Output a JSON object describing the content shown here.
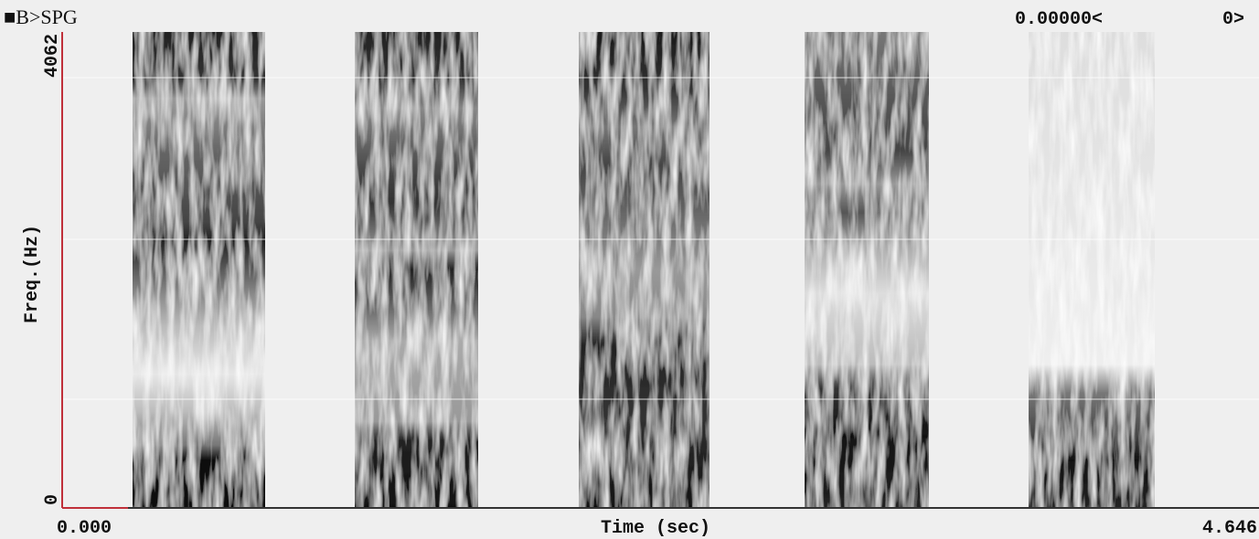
{
  "header": {
    "title": "■B>SPG",
    "cursor_time": "0.00000<",
    "cursor_value": "0>"
  },
  "y_axis": {
    "label": "Freq.(Hz)",
    "top": "4062",
    "bottom": "0"
  },
  "x_axis": {
    "label": "Time (sec)",
    "start": "0.000",
    "end": "4.646"
  }
}
